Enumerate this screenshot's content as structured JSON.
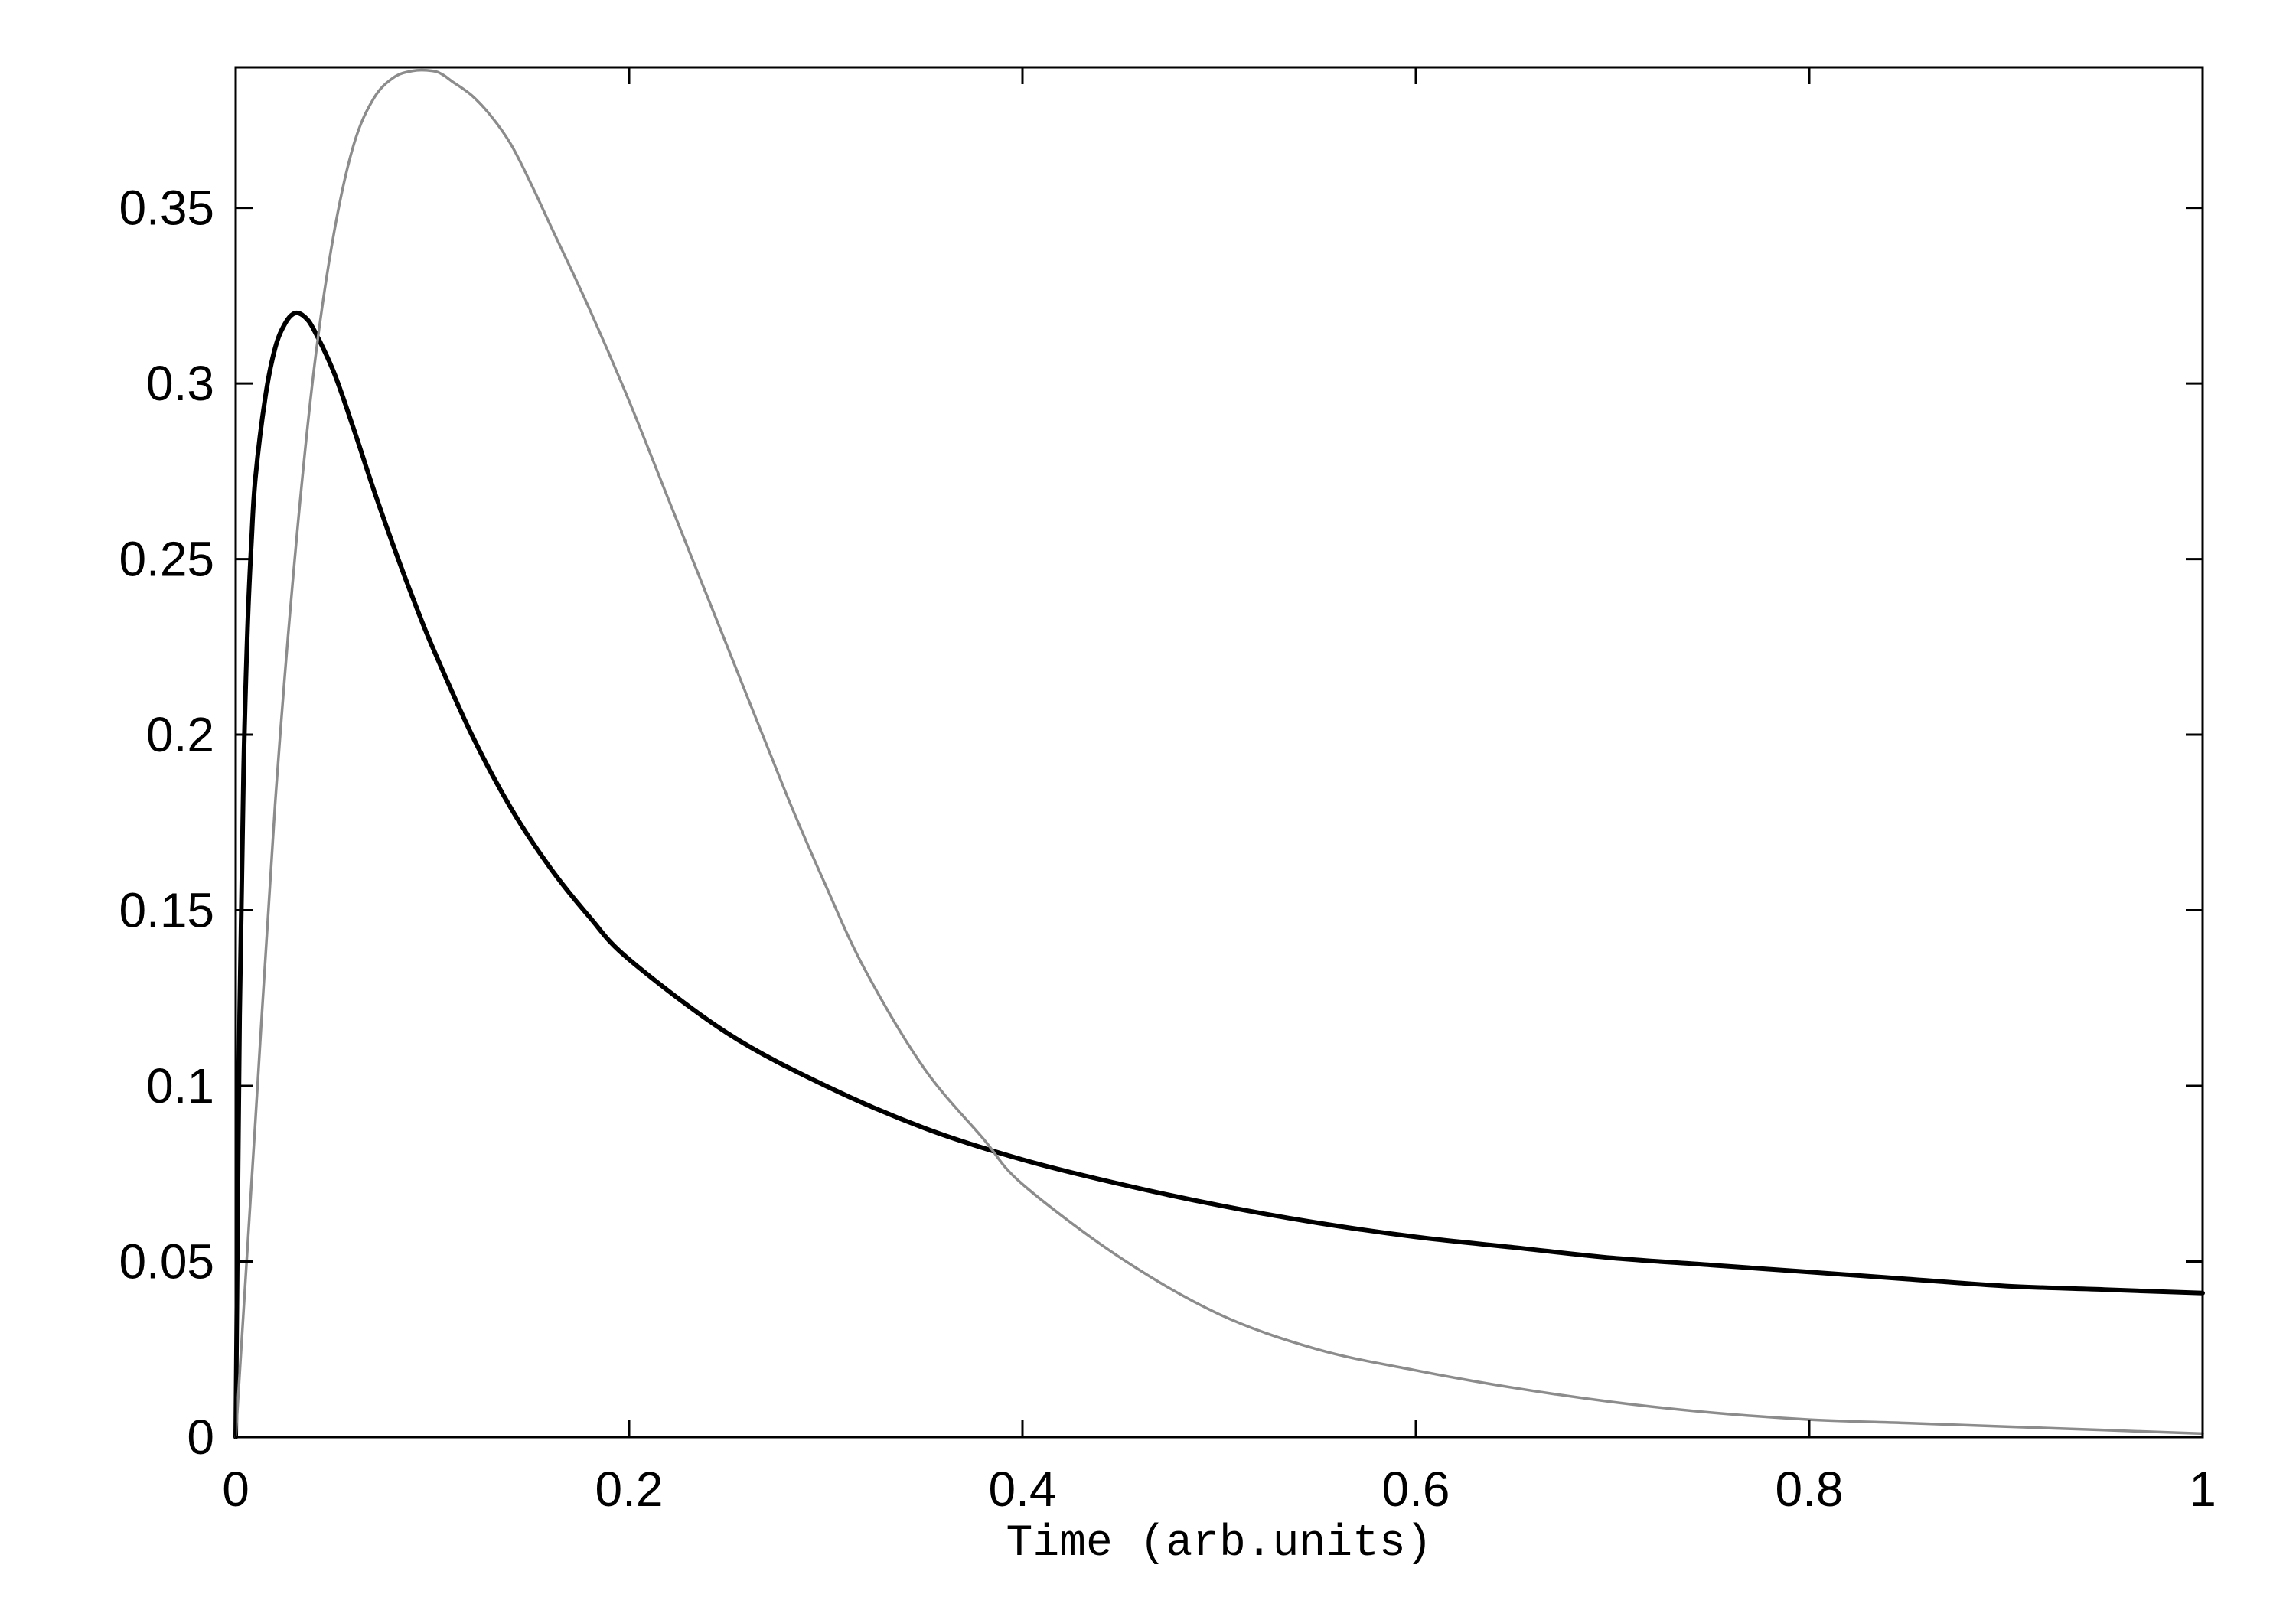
{
  "chart_data": {
    "type": "line",
    "title": "",
    "xlabel": "Time (arb.units)",
    "ylabel": "",
    "xlim": [
      0,
      1
    ],
    "ylim": [
      0,
      0.39
    ],
    "grid": false,
    "legend": "none",
    "x_ticks": [
      "0",
      "0.2",
      "0.4",
      "0.6",
      "0.8",
      "1"
    ],
    "y_ticks": [
      "0",
      "0.05",
      "0.1",
      "0.15",
      "0.2",
      "0.25",
      "0.3",
      "0.35"
    ],
    "series": [
      {
        "color": "#000000",
        "style": "solid-thick",
        "x": [
          0,
          0.002,
          0.004,
          0.006,
          0.008,
          0.01,
          0.015,
          0.02,
          0.025,
          0.03,
          0.035,
          0.04,
          0.05,
          0.06,
          0.07,
          0.08,
          0.09,
          0.1,
          0.12,
          0.14,
          0.16,
          0.18,
          0.2,
          0.25,
          0.3,
          0.35,
          0.4,
          0.45,
          0.5,
          0.55,
          0.6,
          0.65,
          0.7,
          0.75,
          0.8,
          0.85,
          0.9,
          0.95,
          1.0
        ],
        "y": [
          0,
          0.12,
          0.19,
          0.23,
          0.255,
          0.273,
          0.296,
          0.31,
          0.317,
          0.32,
          0.319,
          0.315,
          0.303,
          0.287,
          0.27,
          0.254,
          0.239,
          0.225,
          0.2,
          0.179,
          0.162,
          0.148,
          0.136,
          0.115,
          0.1,
          0.088,
          0.079,
          0.072,
          0.066,
          0.061,
          0.057,
          0.054,
          0.051,
          0.049,
          0.047,
          0.045,
          0.043,
          0.042,
          0.041
        ]
      },
      {
        "color": "#8c8c8c",
        "style": "solid-thin",
        "x": [
          0,
          0.01,
          0.02,
          0.03,
          0.04,
          0.05,
          0.06,
          0.07,
          0.08,
          0.09,
          0.1,
          0.105,
          0.11,
          0.12,
          0.13,
          0.14,
          0.15,
          0.16,
          0.18,
          0.2,
          0.22,
          0.25,
          0.28,
          0.3,
          0.32,
          0.35,
          0.38,
          0.4,
          0.45,
          0.5,
          0.55,
          0.6,
          0.65,
          0.7,
          0.75,
          0.8,
          0.85,
          0.9,
          0.95,
          1.0
        ],
        "y": [
          0,
          0.09,
          0.18,
          0.25,
          0.305,
          0.343,
          0.368,
          0.381,
          0.387,
          0.389,
          0.389,
          0.388,
          0.386,
          0.382,
          0.376,
          0.368,
          0.357,
          0.345,
          0.321,
          0.295,
          0.267,
          0.225,
          0.183,
          0.157,
          0.133,
          0.105,
          0.085,
          0.072,
          0.051,
          0.035,
          0.025,
          0.019,
          0.014,
          0.01,
          0.007,
          0.005,
          0.004,
          0.003,
          0.002,
          0.001
        ]
      }
    ]
  }
}
